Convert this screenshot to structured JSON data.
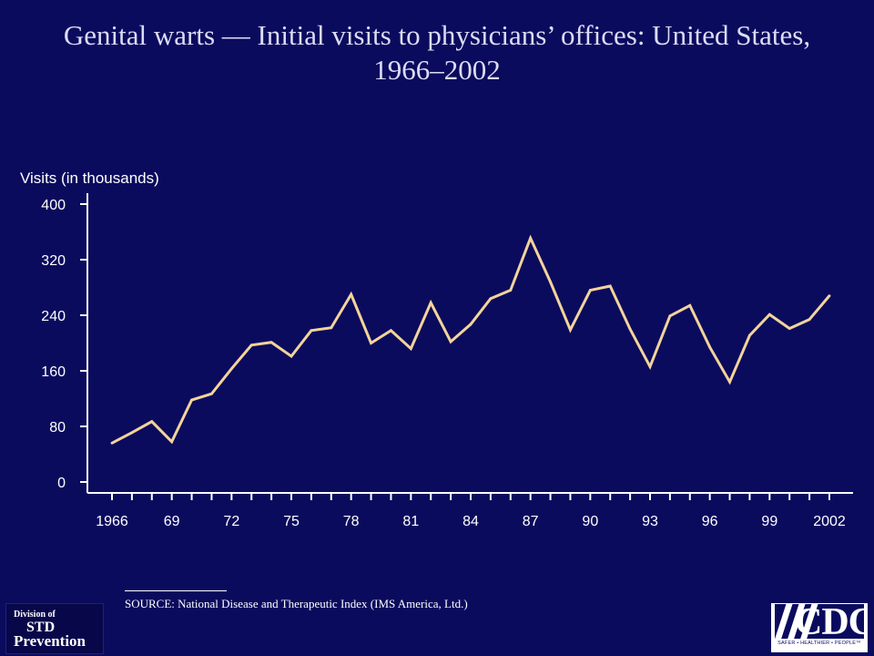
{
  "title": "Genital warts — Initial visits to physicians’ offices: United States, 1966–2002",
  "chart_data": {
    "type": "line",
    "title": "Genital warts — Initial visits to physicians’ offices: United States, 1966–2002",
    "xlabel": "",
    "ylabel": "Visits (in thousands)",
    "x": [
      1966,
      1967,
      1968,
      1969,
      1970,
      1971,
      1972,
      1973,
      1974,
      1975,
      1976,
      1977,
      1978,
      1979,
      1980,
      1981,
      1982,
      1983,
      1984,
      1985,
      1986,
      1987,
      1988,
      1989,
      1990,
      1991,
      1992,
      1993,
      1994,
      1995,
      1996,
      1997,
      1998,
      1999,
      2000,
      2001,
      2002
    ],
    "series": [
      {
        "name": "",
        "values": [
          56,
          71,
          87,
          58,
          118,
          127,
          163,
          197,
          201,
          181,
          218,
          222,
          270,
          200,
          218,
          192,
          258,
          202,
          227,
          264,
          276,
          351,
          288,
          219,
          276,
          282,
          220,
          166,
          239,
          254,
          194,
          144,
          211,
          241,
          221,
          234,
          268
        ]
      }
    ],
    "xlim": [
      1966,
      2002
    ],
    "ylim": [
      0,
      400
    ],
    "y_ticks": [
      0,
      80,
      160,
      240,
      320,
      400
    ],
    "x_tick_labels": [
      {
        "x": 1966,
        "label": "1966"
      },
      {
        "x": 1969,
        "label": "69"
      },
      {
        "x": 1972,
        "label": "72"
      },
      {
        "x": 1975,
        "label": "75"
      },
      {
        "x": 1978,
        "label": "78"
      },
      {
        "x": 1981,
        "label": "81"
      },
      {
        "x": 1984,
        "label": "84"
      },
      {
        "x": 1987,
        "label": "87"
      },
      {
        "x": 1990,
        "label": "90"
      },
      {
        "x": 1993,
        "label": "93"
      },
      {
        "x": 1996,
        "label": "96"
      },
      {
        "x": 1999,
        "label": "99"
      },
      {
        "x": 2002,
        "label": "2002"
      }
    ],
    "grid": false,
    "legend": "none",
    "colors": {
      "background": "#0b0b5e",
      "line": "#f3d49a",
      "axis": "#ffffff"
    }
  },
  "source": "SOURCE: National Disease and Therapeutic Index (IMS America, Ltd.)",
  "logos": {
    "std": {
      "line1": "Division of",
      "line2": "STD",
      "line3": "Prevention"
    },
    "cdc": {
      "text": "CDC",
      "tagline": "SAFER • HEALTHIER • PEOPLE™"
    }
  }
}
